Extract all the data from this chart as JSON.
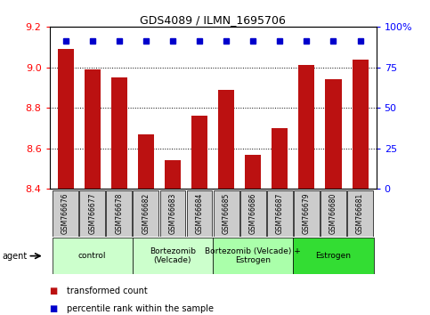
{
  "title": "GDS4089 / ILMN_1695706",
  "samples": [
    "GSM766676",
    "GSM766677",
    "GSM766678",
    "GSM766682",
    "GSM766683",
    "GSM766684",
    "GSM766685",
    "GSM766686",
    "GSM766687",
    "GSM766679",
    "GSM766680",
    "GSM766681"
  ],
  "bar_values": [
    9.09,
    8.99,
    8.95,
    8.67,
    8.54,
    8.76,
    8.89,
    8.57,
    8.7,
    9.01,
    8.94,
    9.04
  ],
  "percentile_y": 9.13,
  "bar_color": "#bb1111",
  "percentile_color": "#0000cc",
  "ylim_left": [
    8.4,
    9.2
  ],
  "ylim_right": [
    0,
    100
  ],
  "yticks_left": [
    8.4,
    8.6,
    8.8,
    9.0,
    9.2
  ],
  "yticks_right": [
    0,
    25,
    50,
    75,
    100
  ],
  "grid_lines": [
    8.6,
    8.8,
    9.0
  ],
  "groups": [
    {
      "label": "control",
      "start": 0,
      "end": 3,
      "color": "#ccffcc"
    },
    {
      "label": "Bortezomib\n(Velcade)",
      "start": 3,
      "end": 6,
      "color": "#ccffcc"
    },
    {
      "label": "Bortezomib (Velcade) +\nEstrogen",
      "start": 6,
      "end": 9,
      "color": "#aaffaa"
    },
    {
      "label": "Estrogen",
      "start": 9,
      "end": 12,
      "color": "#33dd33"
    }
  ],
  "agent_label": "agent",
  "legend": [
    {
      "label": "transformed count",
      "color": "#bb1111"
    },
    {
      "label": "percentile rank within the sample",
      "color": "#0000cc"
    }
  ],
  "tick_bg_color": "#cccccc",
  "bg_color": "#ffffff",
  "title_fontsize": 9,
  "bar_width": 0.6,
  "xlim": [
    -0.6,
    11.6
  ]
}
